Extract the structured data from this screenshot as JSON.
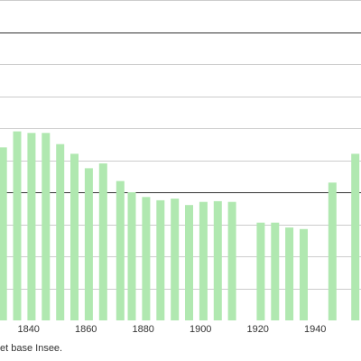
{
  "chart_data": {
    "type": "bar",
    "x": [
      1831,
      1836,
      1841,
      1846,
      1851,
      1856,
      1861,
      1866,
      1872,
      1876,
      1881,
      1886,
      1891,
      1896,
      1901,
      1906,
      1911,
      1921,
      1926,
      1931,
      1936,
      1946,
      1954
    ],
    "values": [
      540,
      590,
      585,
      585,
      550,
      520,
      475,
      490,
      435,
      400,
      385,
      375,
      380,
      360,
      370,
      372,
      370,
      305,
      305,
      290,
      285,
      430,
      520
    ],
    "xticks": [
      1840,
      1860,
      1880,
      1900,
      1920,
      1940
    ],
    "xlim": [
      1830,
      1956
    ],
    "ylim": [
      0,
      1000
    ],
    "gridlines": [
      100,
      200,
      300,
      400,
      500,
      600,
      700,
      800,
      900,
      1000
    ],
    "emphasized_gridlines": [
      400,
      900
    ],
    "bar_color": "#b0e8b0",
    "grid_color": "#cccccc",
    "emphasized_grid_color": "#333333",
    "grid": true
  },
  "source_text": "et base Insee."
}
